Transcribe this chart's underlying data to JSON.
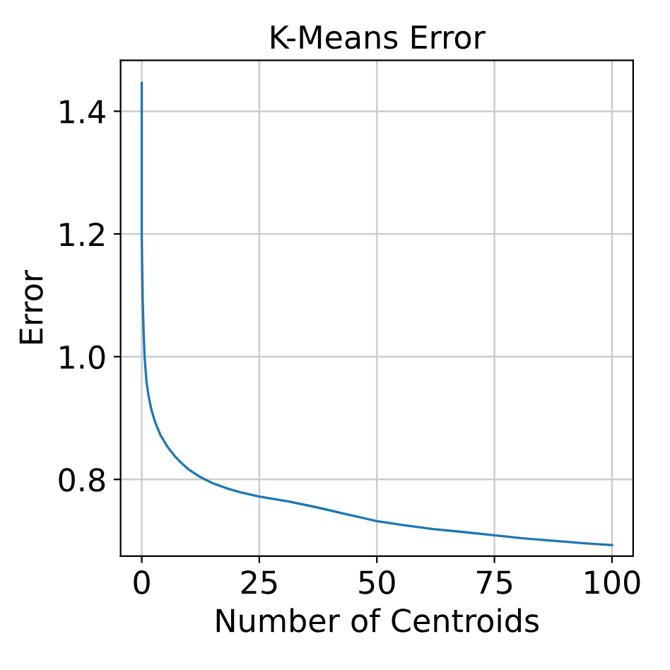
{
  "chart_data": {
    "type": "line",
    "title": "K-Means Error",
    "xlabel": "Number of Centroids",
    "ylabel": "Error",
    "x": [
      0,
      0,
      0.1,
      0.2,
      0.4,
      0.6,
      1,
      1.4,
      2,
      2.9,
      4,
      5.4,
      7,
      8.4,
      10,
      12.4,
      15,
      18.3,
      21,
      25,
      31.3,
      37.5,
      43.7,
      50,
      56,
      62,
      68.7,
      75,
      81,
      87.5,
      94,
      100
    ],
    "series": [
      {
        "color": "#1f77b4",
        "values": [
          1.446,
          1.2,
          1.14,
          1.091,
          1.04,
          1.0,
          0.96,
          0.938,
          0.915,
          0.892,
          0.872,
          0.854,
          0.838,
          0.827,
          0.816,
          0.804,
          0.794,
          0.785,
          0.779,
          0.772,
          0.764,
          0.754,
          0.743,
          0.732,
          0.725,
          0.719,
          0.714,
          0.709,
          0.704,
          0.7,
          0.696,
          0.693
        ]
      }
    ],
    "xlim": [
      -4.5,
      104.5
    ],
    "ylim": [
      0.675,
      1.483
    ],
    "xticks": [
      0,
      25,
      50,
      75,
      100
    ],
    "yticks": [
      {
        "value": 0.8,
        "label": "0.8"
      },
      {
        "value": 1.0,
        "label": "1.0"
      },
      {
        "value": 1.2,
        "label": "1.2"
      },
      {
        "value": 1.4,
        "label": "1.4"
      }
    ],
    "grid": true,
    "line_style": "solid"
  }
}
